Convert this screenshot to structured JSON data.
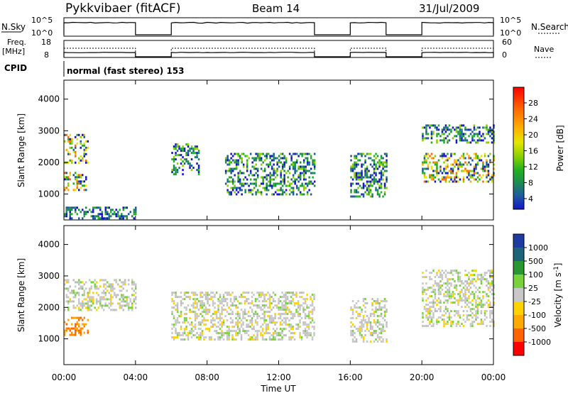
{
  "header": {
    "station": "Pykkvibaer (fitACF)",
    "beam": "Beam 14",
    "date": "31/Jul/2009"
  },
  "params": {
    "nsky_label": "N.Sky",
    "nsky_ticks": [
      "10^5",
      "10^0"
    ],
    "nsearch_label": "N.Search",
    "nsearch_ticks": [
      "10^5",
      "10^0"
    ],
    "freq_label_1": "Freq.",
    "freq_label_2": "[MHz]",
    "freq_ticks": [
      "18",
      "8"
    ],
    "nave_label": "Nave",
    "nave_ticks": [
      "60",
      "0"
    ],
    "cpid_label": "CPID",
    "cpid_text": "normal (fast stereo) 153",
    "on_intervals": [
      [
        0,
        4
      ],
      [
        6,
        14
      ],
      [
        16,
        18
      ],
      [
        20,
        24
      ]
    ]
  },
  "chart_data": [
    {
      "type": "heatmap",
      "name": "power",
      "ylabel": "Slant Range [km]",
      "yticks": [
        1000,
        2000,
        3000,
        4000
      ],
      "ylim": [
        180,
        4600
      ],
      "xlim": [
        0,
        24
      ],
      "colorbar_label": "Power [dB]",
      "colorbar_ticks": [
        "28",
        "24",
        "20",
        "16",
        "12",
        "8",
        "4"
      ],
      "colorbar_colors": [
        "#ff0000",
        "#ff6a00",
        "#ffaa00",
        "#e6e600",
        "#8ad000",
        "#22b022",
        "#1e8c50",
        "#1e5aa0",
        "#1414c8"
      ],
      "bands": [
        {
          "t": [
            0,
            1.3
          ],
          "r": [
            2000,
            2900
          ],
          "level": "high"
        },
        {
          "t": [
            0,
            1.2
          ],
          "r": [
            1100,
            1700
          ],
          "level": "high"
        },
        {
          "t": [
            0,
            4
          ],
          "r": [
            200,
            600
          ],
          "level": "low"
        },
        {
          "t": [
            6,
            7.5
          ],
          "r": [
            1600,
            2600
          ],
          "level": "mid"
        },
        {
          "t": [
            9,
            14
          ],
          "r": [
            1000,
            2300
          ],
          "level": "mid"
        },
        {
          "t": [
            16,
            18
          ],
          "r": [
            900,
            2300
          ],
          "level": "mid"
        },
        {
          "t": [
            20,
            24
          ],
          "r": [
            1400,
            2300
          ],
          "level": "high"
        },
        {
          "t": [
            20,
            24
          ],
          "r": [
            2600,
            3200
          ],
          "level": "mid"
        }
      ]
    },
    {
      "type": "heatmap",
      "name": "velocity",
      "ylabel": "Slant Range [km]",
      "yticks": [
        1000,
        2000,
        3000,
        4000
      ],
      "ylim": [
        180,
        4600
      ],
      "xlim": [
        0,
        24
      ],
      "xticks": [
        "00:00",
        "04:00",
        "08:00",
        "12:00",
        "16:00",
        "20:00",
        "00:00"
      ],
      "xlabel": "Time UT",
      "colorbar_label": "Velocity [m s^-1]",
      "colorbar_ticks": [
        "1000",
        "500",
        "100",
        "25",
        "-25",
        "-100",
        "-500",
        "-1000"
      ],
      "colorbar_colors": [
        "#1e3ca0",
        "#1e6478",
        "#2a9632",
        "#78d23c",
        "#c8c8c8",
        "#ffd200",
        "#ffaa00",
        "#ff6400",
        "#ff0000"
      ],
      "bands": [
        {
          "t": [
            0,
            1.3
          ],
          "r": [
            1100,
            1700
          ],
          "level": "-500"
        },
        {
          "t": [
            0,
            4
          ],
          "r": [
            1900,
            2900
          ],
          "level": "ground"
        },
        {
          "t": [
            6,
            14
          ],
          "r": [
            1000,
            2500
          ],
          "level": "ground"
        },
        {
          "t": [
            16,
            18
          ],
          "r": [
            900,
            2300
          ],
          "level": "ground"
        },
        {
          "t": [
            20,
            24
          ],
          "r": [
            1400,
            3200
          ],
          "level": "ground"
        }
      ]
    }
  ]
}
